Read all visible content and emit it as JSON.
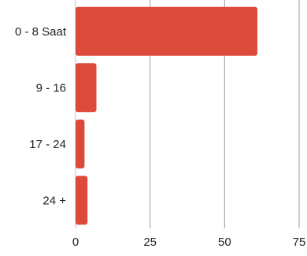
{
  "chart_data": {
    "type": "bar",
    "orientation": "horizontal",
    "categories": [
      "0 - 8 Saat",
      "9 - 16",
      "17 - 24",
      "24 +"
    ],
    "values": [
      61,
      7,
      3,
      4
    ],
    "xlim": [
      0,
      75
    ],
    "xticks": [
      0,
      25,
      50,
      75
    ],
    "grid": "vertical",
    "bar_color": "#dc4a3b",
    "grid_color": "#9e9e9e"
  }
}
